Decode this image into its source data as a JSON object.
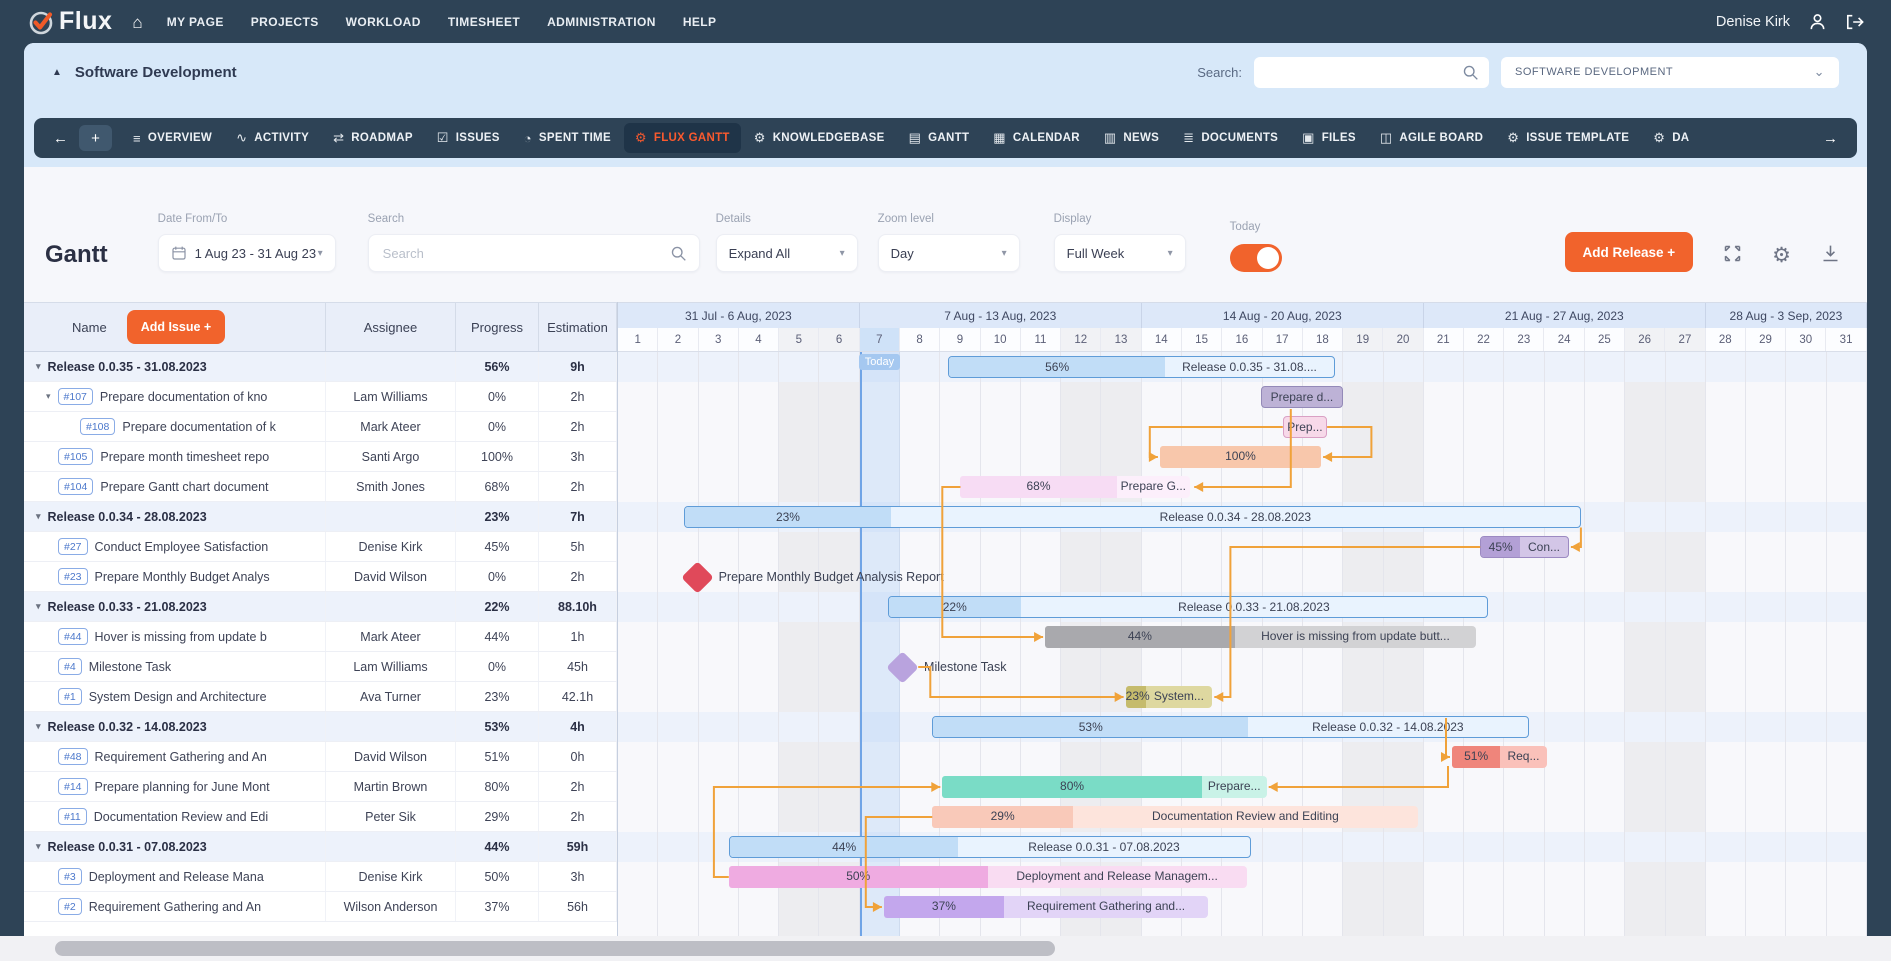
{
  "navbar": {
    "brand": "Flux",
    "items": [
      "MY PAGE",
      "PROJECTS",
      "WORKLOAD",
      "TIMESHEET",
      "ADMINISTRATION",
      "HELP"
    ],
    "user_name": "Denise Kirk"
  },
  "project_header": {
    "title": "Software Development",
    "search_label": "Search:",
    "search_value": "",
    "project_select_value": "SOFTWARE DEVELOPMENT"
  },
  "tab_bar": {
    "back_arrow": "←",
    "forward_arrow": "→",
    "add_tab_label": "+",
    "tabs": [
      {
        "label": "OVERVIEW",
        "glyph": "≡",
        "icon": "overview-icon",
        "active": false
      },
      {
        "label": "ACTIVITY",
        "glyph": "∿",
        "icon": "activity-icon",
        "active": false
      },
      {
        "label": "ROADMAP",
        "glyph": "⇄",
        "icon": "roadmap-icon",
        "active": false
      },
      {
        "label": "ISSUES",
        "glyph": "☑",
        "icon": "issues-icon",
        "active": false
      },
      {
        "label": "SPENT TIME",
        "glyph": "◔",
        "icon": "spent-time-icon",
        "active": false
      },
      {
        "label": "FLUX GANTT",
        "glyph": "⚙",
        "icon": "flux-gantt-icon",
        "active": true
      },
      {
        "label": "KNOWLEDGEBASE",
        "glyph": "⚙",
        "icon": "knowledgebase-icon",
        "active": false
      },
      {
        "label": "GANTT",
        "glyph": "▤",
        "icon": "gantt-icon",
        "active": false
      },
      {
        "label": "CALENDAR",
        "glyph": "▦",
        "icon": "calendar-icon",
        "active": false
      },
      {
        "label": "NEWS",
        "glyph": "▥",
        "icon": "news-icon",
        "active": false
      },
      {
        "label": "DOCUMENTS",
        "glyph": "≣",
        "icon": "documents-icon",
        "active": false
      },
      {
        "label": "FILES",
        "glyph": "▣",
        "icon": "files-icon",
        "active": false
      },
      {
        "label": "AGILE BOARD",
        "glyph": "◫",
        "icon": "agile-board-icon",
        "active": false
      },
      {
        "label": "ISSUE TEMPLATE",
        "glyph": "⚙",
        "icon": "issue-template-icon",
        "active": false
      },
      {
        "label": "DA",
        "glyph": "⚙",
        "icon": "dashboard-icon",
        "active": false
      }
    ]
  },
  "toolbar": {
    "page_title": "Gantt",
    "date_label": "Date From/To",
    "date_value": "1 Aug 23 - 31 Aug 23",
    "search_label": "Search",
    "search_placeholder": "Search",
    "details_label": "Details",
    "details_value": "Expand All",
    "zoom_label": "Zoom level",
    "zoom_value": "Day",
    "display_label": "Display",
    "display_value": "Full Week",
    "today_label": "Today",
    "today_on": true,
    "add_release_label": "Add Release +"
  },
  "table": {
    "name_header": "Name",
    "add_issue_label": "Add Issue +",
    "assignee_header": "Assignee",
    "progress_header": "Progress",
    "estimation_header": "Estimation",
    "rows": [
      {
        "type": "release",
        "name": "Release 0.0.35 - 31.08.2023",
        "assignee": "",
        "progress": "56%",
        "estimation": "9h"
      },
      {
        "type": "task",
        "id": "#107",
        "name": "Prepare documentation of kno",
        "assignee": "Lam Williams",
        "progress": "0%",
        "estimation": "2h",
        "indent": 1,
        "expand": true
      },
      {
        "type": "task",
        "id": "#108",
        "name": "Prepare documentation of k",
        "assignee": "Mark Ateer",
        "progress": "0%",
        "estimation": "2h",
        "indent": 2
      },
      {
        "type": "task",
        "id": "#105",
        "name": "Prepare month timesheet repo",
        "assignee": "Santi Argo",
        "progress": "100%",
        "estimation": "3h",
        "indent": 1
      },
      {
        "type": "task",
        "id": "#104",
        "name": "Prepare Gantt chart document",
        "assignee": "Smith Jones",
        "progress": "68%",
        "estimation": "2h",
        "indent": 1
      },
      {
        "type": "release",
        "name": "Release 0.0.34 - 28.08.2023",
        "assignee": "",
        "progress": "23%",
        "estimation": "7h"
      },
      {
        "type": "task",
        "id": "#27",
        "name": "Conduct Employee Satisfaction",
        "assignee": "Denise Kirk",
        "progress": "45%",
        "estimation": "5h",
        "indent": 1
      },
      {
        "type": "task",
        "id": "#23",
        "name": "Prepare Monthly Budget Analys",
        "assignee": "David Wilson",
        "progress": "0%",
        "estimation": "2h",
        "indent": 1
      },
      {
        "type": "release",
        "name": "Release 0.0.33 - 21.08.2023",
        "assignee": "",
        "progress": "22%",
        "estimation": "88.10h"
      },
      {
        "type": "task",
        "id": "#44",
        "name": "Hover is missing from update b",
        "assignee": "Mark Ateer",
        "progress": "44%",
        "estimation": "1h",
        "indent": 1
      },
      {
        "type": "task",
        "id": "#4",
        "name": "Milestone Task",
        "assignee": "Lam Williams",
        "progress": "0%",
        "estimation": "45h",
        "indent": 1
      },
      {
        "type": "task",
        "id": "#1",
        "name": "System Design and Architecture",
        "assignee": "Ava Turner",
        "progress": "23%",
        "estimation": "42.1h",
        "indent": 1
      },
      {
        "type": "release",
        "name": "Release 0.0.32 - 14.08.2023",
        "assignee": "",
        "progress": "53%",
        "estimation": "4h"
      },
      {
        "type": "task",
        "id": "#48",
        "name": "Requirement Gathering and An",
        "assignee": "David Wilson",
        "progress": "51%",
        "estimation": "0h",
        "indent": 1
      },
      {
        "type": "task",
        "id": "#14",
        "name": "Prepare planning for June Mont",
        "assignee": "Martin Brown",
        "progress": "80%",
        "estimation": "2h",
        "indent": 1
      },
      {
        "type": "task",
        "id": "#11",
        "name": "Documentation Review and Edi",
        "assignee": "Peter Sik",
        "progress": "29%",
        "estimation": "2h",
        "indent": 1
      },
      {
        "type": "release",
        "name": "Release 0.0.31 - 07.08.2023",
        "assignee": "",
        "progress": "44%",
        "estimation": "59h"
      },
      {
        "type": "task",
        "id": "#3",
        "name": "Deployment and Release Mana",
        "assignee": "Denise Kirk",
        "progress": "50%",
        "estimation": "3h",
        "indent": 1
      },
      {
        "type": "task",
        "id": "#2",
        "name": "Requirement Gathering and An",
        "assignee": "Wilson Anderson",
        "progress": "37%",
        "estimation": "56h",
        "indent": 1
      }
    ]
  },
  "gantt": {
    "weeks": [
      {
        "label": "31 Jul - 6 Aug, 2023",
        "days": 6
      },
      {
        "label": "7 Aug - 13 Aug, 2023",
        "days": 7
      },
      {
        "label": "14 Aug - 20 Aug, 2023",
        "days": 7
      },
      {
        "label": "21 Aug - 27 Aug, 2023",
        "days": 7
      },
      {
        "label": "28 Aug - 3 Sep, 2023",
        "days": 4
      }
    ],
    "day_numbers": [
      1,
      2,
      3,
      4,
      5,
      6,
      7,
      8,
      9,
      10,
      11,
      12,
      13,
      14,
      15,
      16,
      17,
      18,
      19,
      20,
      21,
      22,
      23,
      24,
      25,
      26,
      27,
      28,
      29,
      30,
      31
    ],
    "today_day": 7,
    "today_label": "Today",
    "weekend_days": [
      5,
      6,
      12,
      13,
      19,
      20,
      26,
      27
    ],
    "release_row_indexes": [
      0,
      5,
      8,
      12,
      16
    ],
    "release_colors": {
      "border": "#5f9cd8",
      "fill": "#c1ddf7",
      "bg": "#e9f3fe"
    },
    "connector_color": "#f0a23a",
    "bars": [
      {
        "row": 0,
        "kind": "release",
        "start": 8.2,
        "end": 17.8,
        "pct": 56,
        "pct_label": "56%",
        "label": "Release 0.0.35 - 31.08...."
      },
      {
        "row": 1,
        "kind": "task",
        "start": 15.95,
        "end": 18.0,
        "pct": null,
        "pct_label": "",
        "label": "Prepare d...",
        "bg": "#bdb2d6",
        "fill": "#bdb2d6",
        "border": "#948ab8"
      },
      {
        "row": 2,
        "kind": "task",
        "start": 16.5,
        "end": 17.6,
        "pct": null,
        "pct_label": "",
        "label": "Prep...",
        "bg": "#f7d9e9",
        "fill": "#f7d9e9",
        "border": "#d9a0c4"
      },
      {
        "row": 3,
        "kind": "task",
        "start": 13.45,
        "end": 17.45,
        "pct": 100,
        "pct_label": "100%",
        "label": "",
        "bg": "#f8c7ab",
        "fill": "#f8c7ab",
        "border": null
      },
      {
        "row": 4,
        "kind": "task",
        "start": 8.5,
        "end": 14.2,
        "pct": 68,
        "pct_label": "68%",
        "label": "Prepare G...",
        "bg": "#fceffb",
        "fill": "#f7dcf4",
        "border": null
      },
      {
        "row": 5,
        "kind": "release",
        "start": 1.64,
        "end": 23.9,
        "pct": 23,
        "pct_label": "23%",
        "label": "Release 0.0.34 - 28.08.2023"
      },
      {
        "row": 6,
        "kind": "task",
        "start": 21.4,
        "end": 23.6,
        "pct": 45,
        "pct_label": "45%",
        "label": "Con...",
        "bg": "#d3c6e7",
        "fill": "#b3a0d6",
        "border": "#9c8ac2"
      },
      {
        "row": 8,
        "kind": "release",
        "start": 6.7,
        "end": 21.6,
        "pct": 22,
        "pct_label": "22%",
        "label": "Release 0.0.33 - 21.08.2023"
      },
      {
        "row": 9,
        "kind": "task",
        "start": 10.6,
        "end": 21.3,
        "pct": 44,
        "pct_label": "44%",
        "label": "Hover is missing from update butt...",
        "bg": "#d2d2d4",
        "fill": "#a9a9ad",
        "border": null
      },
      {
        "row": 11,
        "kind": "task",
        "start": 12.6,
        "end": 14.75,
        "pct": 23,
        "pct_label": "23%",
        "label": "System...",
        "bg": "#ded8a0",
        "fill": "#c5bb6c",
        "border": null
      },
      {
        "row": 12,
        "kind": "release",
        "start": 7.8,
        "end": 22.6,
        "pct": 53,
        "pct_label": "53%",
        "label": "Release 0.0.32 - 14.08.2023"
      },
      {
        "row": 13,
        "kind": "task",
        "start": 20.7,
        "end": 23.05,
        "pct": 51,
        "pct_label": "51%",
        "label": "Req...",
        "bg": "#fac1ba",
        "fill": "#ef857b",
        "border": null
      },
      {
        "row": 14,
        "kind": "task",
        "start": 8.05,
        "end": 16.1,
        "pct": 80,
        "pct_label": "80%",
        "label": "Prepare...",
        "bg": "#c9f2e7",
        "fill": "#7adcc6",
        "border": null
      },
      {
        "row": 15,
        "kind": "task",
        "start": 7.8,
        "end": 19.85,
        "pct": 29,
        "pct_label": "29%",
        "label": "Documentation Review and Editing",
        "bg": "#fde4dc",
        "fill": "#f9c9b9",
        "border": null
      },
      {
        "row": 16,
        "kind": "release",
        "start": 2.75,
        "end": 15.7,
        "pct": 44,
        "pct_label": "44%",
        "label": "Release 0.0.31 - 07.08.2023"
      },
      {
        "row": 17,
        "kind": "task",
        "start": 2.75,
        "end": 15.6,
        "pct": 50,
        "pct_label": "50%",
        "label": "Deployment and Release Managem...",
        "bg": "#f9dcf2",
        "fill": "#efabe1",
        "border": null
      },
      {
        "row": 18,
        "kind": "task",
        "start": 6.6,
        "end": 14.65,
        "pct": 37,
        "pct_label": "37%",
        "label": "Requirement Gathering and...",
        "bg": "#e2d4f7",
        "fill": "#c3a7ed",
        "border": null
      }
    ],
    "milestones": [
      {
        "row": 7,
        "at": 1.95,
        "label": "Prepare Monthly Budget Analysis Report",
        "color": "#e0495a"
      },
      {
        "row": 10,
        "at": 7.05,
        "label": "Milestone Task",
        "color": "#b9a3de"
      }
    ],
    "connectors": [
      {
        "pts": [
          [
            16.7,
            1.9
          ],
          [
            16.7,
            4.5
          ],
          [
            14.3,
            4.5
          ]
        ],
        "arrow": "left"
      },
      {
        "pts": [
          [
            16.5,
            2.5
          ],
          [
            13.2,
            2.5
          ],
          [
            13.2,
            3.5
          ],
          [
            13.4,
            3.5
          ]
        ],
        "arrow": "right"
      },
      {
        "pts": [
          [
            17.6,
            2.5
          ],
          [
            18.7,
            2.5
          ],
          [
            18.7,
            3.5
          ],
          [
            17.5,
            3.5
          ]
        ],
        "arrow": "left"
      },
      {
        "pts": [
          [
            8.5,
            4.5
          ],
          [
            8.05,
            4.5
          ],
          [
            8.05,
            9.5
          ],
          [
            10.55,
            9.5
          ]
        ],
        "arrow": "right"
      },
      {
        "pts": [
          [
            21.4,
            6.5
          ],
          [
            15.2,
            6.5
          ],
          [
            15.2,
            11.5
          ],
          [
            14.8,
            11.5
          ]
        ],
        "arrow": "left"
      },
      {
        "pts": [
          [
            7.45,
            10.5
          ],
          [
            7.75,
            10.5
          ],
          [
            7.75,
            11.5
          ],
          [
            12.55,
            11.5
          ]
        ],
        "arrow": "right"
      },
      {
        "pts": [
          [
            20.55,
            12.2
          ],
          [
            20.55,
            13.5
          ],
          [
            20.65,
            13.5
          ]
        ],
        "arrow": "right"
      },
      {
        "pts": [
          [
            20.6,
            13.8
          ],
          [
            20.6,
            14.5
          ],
          [
            16.15,
            14.5
          ]
        ],
        "arrow": "left"
      },
      {
        "pts": [
          [
            2.75,
            17.5
          ],
          [
            2.38,
            17.5
          ],
          [
            2.38,
            14.5
          ],
          [
            8.0,
            14.5
          ]
        ],
        "arrow": "right"
      },
      {
        "pts": [
          [
            7.8,
            15.5
          ],
          [
            6.15,
            15.5
          ],
          [
            6.15,
            18.5
          ],
          [
            6.55,
            18.5
          ]
        ],
        "arrow": "right"
      },
      {
        "pts": [
          [
            23.9,
            5.85
          ],
          [
            23.9,
            6.5
          ],
          [
            23.65,
            6.5
          ]
        ],
        "arrow": "left"
      }
    ]
  }
}
